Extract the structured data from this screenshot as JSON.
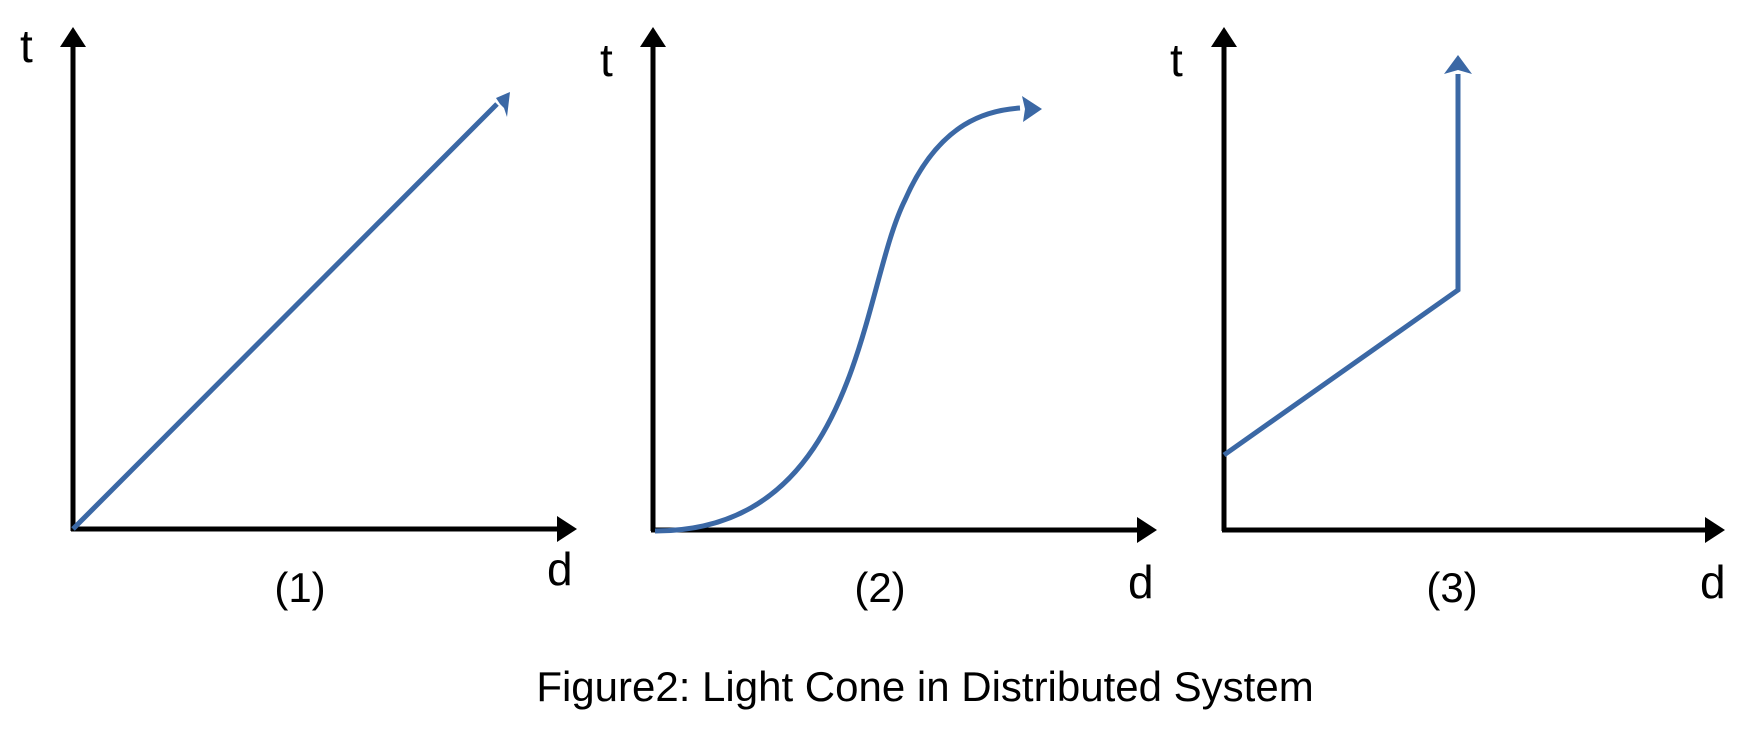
{
  "colors": {
    "axis": "#000000",
    "curve": "#3b68a5"
  },
  "panels": [
    {
      "t_label": "t",
      "d_label": "d",
      "label": "(1)",
      "curve": "diagonal-line"
    },
    {
      "t_label": "t",
      "d_label": "d",
      "label": "(2)",
      "curve": "s-curve"
    },
    {
      "t_label": "t",
      "d_label": "d",
      "label": "(3)",
      "curve": "slope-then-vertical"
    }
  ],
  "caption": "Figure2: Light Cone in Distributed System"
}
